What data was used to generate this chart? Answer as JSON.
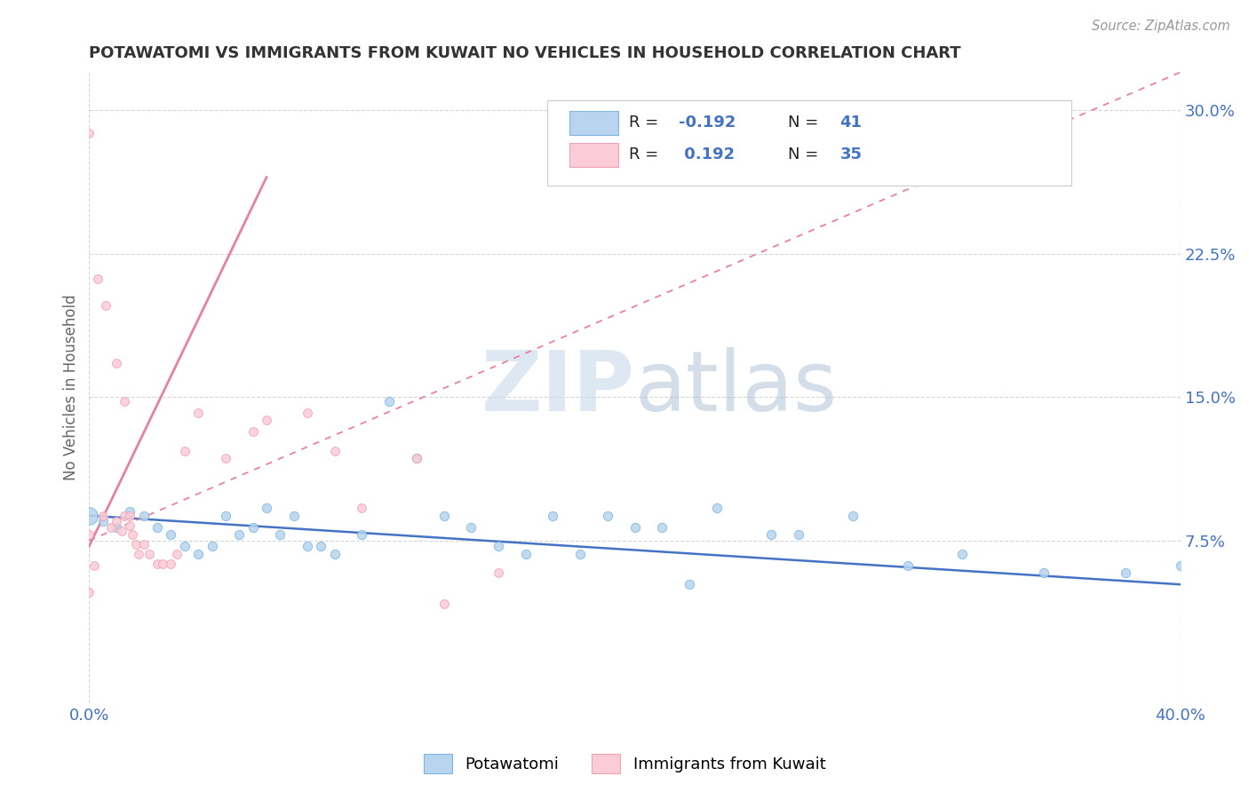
{
  "title": "POTAWATOMI VS IMMIGRANTS FROM KUWAIT NO VEHICLES IN HOUSEHOLD CORRELATION CHART",
  "source": "Source: ZipAtlas.com",
  "ylabel": "No Vehicles in Household",
  "xlim": [
    0.0,
    0.4
  ],
  "ylim": [
    -0.01,
    0.32
  ],
  "blue_color": "#7db8e0",
  "pink_color": "#f4a0b5",
  "blue_fill": "#b8d4ee",
  "pink_fill": "#f9ccd8",
  "blue_line_color": "#4472c4",
  "pink_line_color": "#e8829a",
  "text_color_blue": "#4472c4",
  "text_color_dark": "#222222",
  "watermark_zip_color": "#d0dce8",
  "watermark_atlas_color": "#b8cce0",
  "blue_points": [
    [
      0.005,
      0.085
    ],
    [
      0.01,
      0.082
    ],
    [
      0.015,
      0.09
    ],
    [
      0.02,
      0.088
    ],
    [
      0.025,
      0.082
    ],
    [
      0.03,
      0.078
    ],
    [
      0.035,
      0.072
    ],
    [
      0.04,
      0.068
    ],
    [
      0.045,
      0.072
    ],
    [
      0.05,
      0.088
    ],
    [
      0.055,
      0.078
    ],
    [
      0.06,
      0.082
    ],
    [
      0.065,
      0.092
    ],
    [
      0.07,
      0.078
    ],
    [
      0.075,
      0.088
    ],
    [
      0.08,
      0.072
    ],
    [
      0.085,
      0.072
    ],
    [
      0.09,
      0.068
    ],
    [
      0.1,
      0.078
    ],
    [
      0.11,
      0.148
    ],
    [
      0.12,
      0.118
    ],
    [
      0.13,
      0.088
    ],
    [
      0.14,
      0.082
    ],
    [
      0.15,
      0.072
    ],
    [
      0.16,
      0.068
    ],
    [
      0.17,
      0.088
    ],
    [
      0.18,
      0.068
    ],
    [
      0.19,
      0.088
    ],
    [
      0.2,
      0.082
    ],
    [
      0.21,
      0.082
    ],
    [
      0.22,
      0.052
    ],
    [
      0.23,
      0.092
    ],
    [
      0.25,
      0.078
    ],
    [
      0.26,
      0.078
    ],
    [
      0.28,
      0.088
    ],
    [
      0.3,
      0.062
    ],
    [
      0.32,
      0.068
    ],
    [
      0.35,
      0.058
    ],
    [
      0.38,
      0.058
    ],
    [
      0.4,
      0.062
    ]
  ],
  "blue_large_point": [
    0.0,
    0.088
  ],
  "pink_points": [
    [
      0.0,
      0.288
    ],
    [
      0.003,
      0.212
    ],
    [
      0.006,
      0.198
    ],
    [
      0.01,
      0.168
    ],
    [
      0.013,
      0.148
    ],
    [
      0.005,
      0.088
    ],
    [
      0.008,
      0.082
    ],
    [
      0.01,
      0.085
    ],
    [
      0.012,
      0.08
    ],
    [
      0.013,
      0.088
    ],
    [
      0.015,
      0.088
    ],
    [
      0.015,
      0.083
    ],
    [
      0.016,
      0.078
    ],
    [
      0.017,
      0.073
    ],
    [
      0.018,
      0.068
    ],
    [
      0.02,
      0.073
    ],
    [
      0.022,
      0.068
    ],
    [
      0.025,
      0.063
    ],
    [
      0.027,
      0.063
    ],
    [
      0.03,
      0.063
    ],
    [
      0.032,
      0.068
    ],
    [
      0.035,
      0.122
    ],
    [
      0.04,
      0.142
    ],
    [
      0.05,
      0.118
    ],
    [
      0.06,
      0.132
    ],
    [
      0.065,
      0.138
    ],
    [
      0.08,
      0.142
    ],
    [
      0.09,
      0.122
    ],
    [
      0.1,
      0.092
    ],
    [
      0.12,
      0.118
    ],
    [
      0.13,
      0.042
    ],
    [
      0.15,
      0.058
    ],
    [
      0.0,
      0.078
    ],
    [
      0.0,
      0.048
    ],
    [
      0.002,
      0.062
    ]
  ],
  "blue_marker_size": 55,
  "blue_large_size": 200,
  "pink_marker_size": 50
}
